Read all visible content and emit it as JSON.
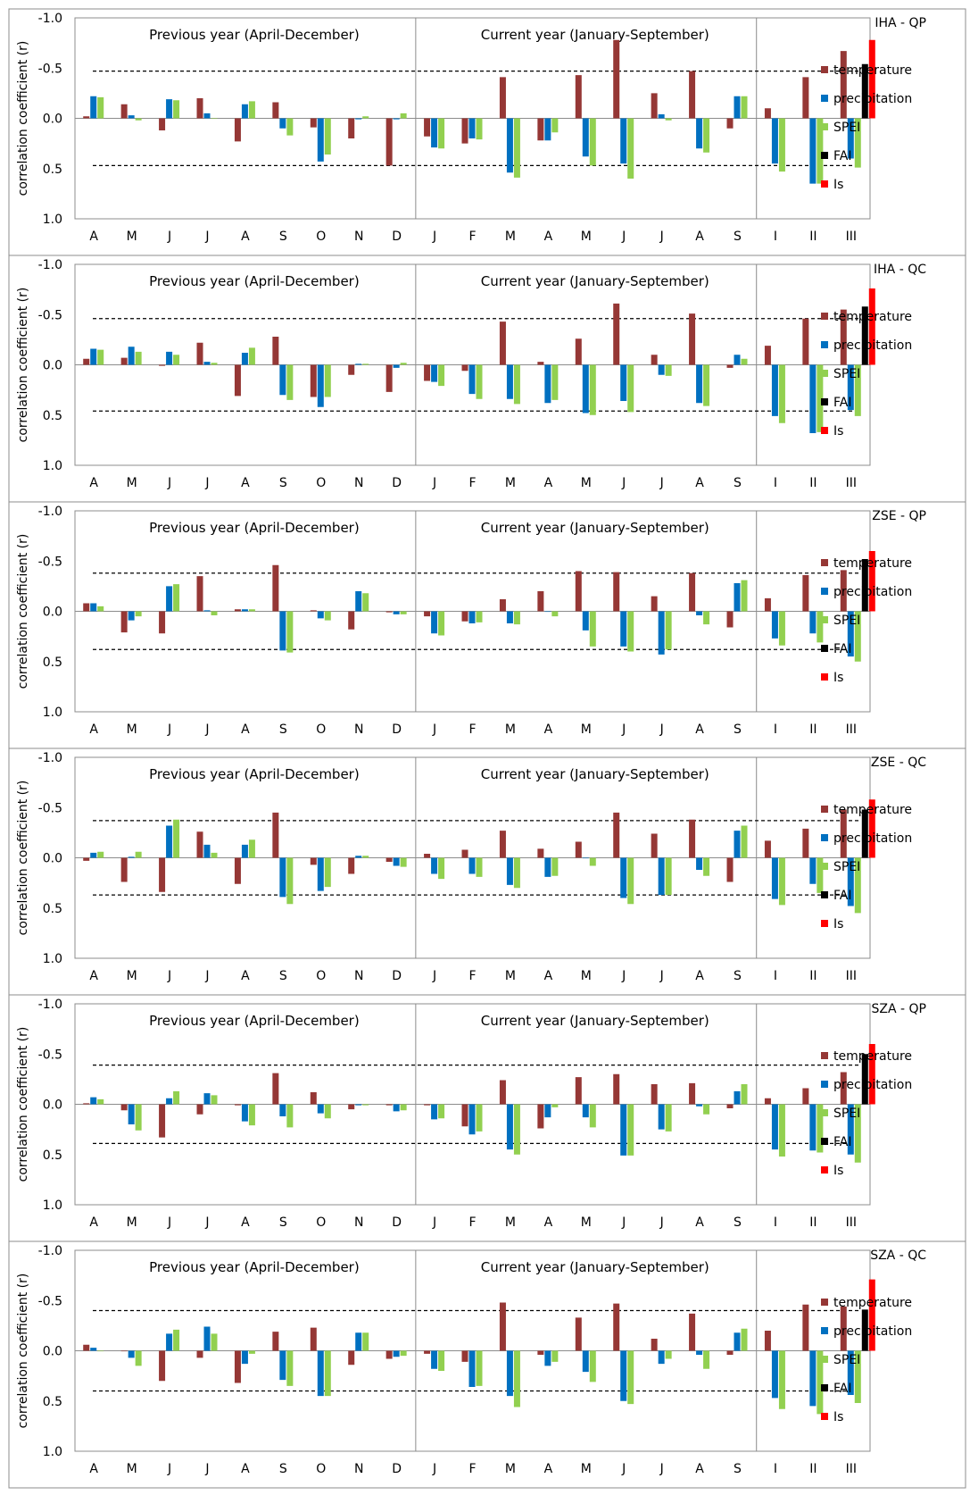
{
  "colors": {
    "temperature": "#953735",
    "precipitation": "#0070C0",
    "SPEI": "#92D050",
    "FAI": "#000000",
    "Is": "#FF0000"
  },
  "legend": [
    "temperature",
    "precipitation",
    "SPEI",
    "FAI",
    "Is"
  ],
  "section_labels": {
    "previous": "Previous year (April-December)",
    "current": "Current year (January-September)"
  },
  "ylabel": "correlation coefficient (r)",
  "chart_data": [
    {
      "type": "bar",
      "title": "IHA - QP",
      "ylim": [
        -1.0,
        1.0
      ],
      "yticks": [
        "1.0",
        "0.5",
        "0.0",
        "-0.5",
        "-1.0"
      ],
      "categories": [
        "A",
        "M",
        "J",
        "J",
        "A",
        "S",
        "O",
        "N",
        "D",
        "J",
        "F",
        "M",
        "A",
        "M",
        "J",
        "J",
        "A",
        "S",
        "I",
        "II",
        "III"
      ],
      "threshold": 0.47,
      "series": [
        {
          "name": "temperature",
          "values": [
            -0.02,
            -0.14,
            0.12,
            -0.2,
            0.23,
            -0.16,
            0.09,
            0.2,
            0.47,
            0.18,
            0.25,
            -0.41,
            0.22,
            -0.43,
            -0.78,
            -0.25,
            -0.47,
            0.1,
            -0.1,
            -0.41,
            -0.67
          ]
        },
        {
          "name": "precipitation",
          "values": [
            -0.22,
            -0.03,
            -0.19,
            -0.05,
            -0.14,
            0.1,
            0.43,
            0.01,
            0.01,
            0.29,
            0.2,
            0.54,
            0.22,
            0.38,
            0.45,
            -0.04,
            0.3,
            -0.22,
            0.45,
            0.65,
            0.4
          ]
        },
        {
          "name": "SPEI",
          "values": [
            -0.21,
            0.02,
            -0.18,
            0.0,
            -0.17,
            0.17,
            0.36,
            -0.02,
            -0.05,
            0.3,
            0.21,
            0.59,
            0.14,
            0.47,
            0.6,
            0.02,
            0.34,
            -0.22,
            0.53,
            0.65,
            0.49
          ]
        }
      ],
      "extra_bars": {
        "FAI": -0.54,
        "Is": -0.78
      }
    },
    {
      "type": "bar",
      "title": "IHA - QC",
      "ylim": [
        -1.0,
        1.0
      ],
      "yticks": [
        "1.0",
        "0.5",
        "0.0",
        "-0.5",
        "-1.0"
      ],
      "categories": [
        "A",
        "M",
        "J",
        "J",
        "A",
        "S",
        "O",
        "N",
        "D",
        "J",
        "F",
        "M",
        "A",
        "M",
        "J",
        "J",
        "A",
        "S",
        "I",
        "II",
        "III"
      ],
      "threshold": 0.46,
      "series": [
        {
          "name": "temperature",
          "values": [
            -0.06,
            -0.07,
            0.01,
            -0.22,
            0.31,
            -0.28,
            0.32,
            0.1,
            0.27,
            0.16,
            0.06,
            -0.43,
            -0.03,
            -0.26,
            -0.61,
            -0.1,
            -0.51,
            0.03,
            -0.19,
            -0.46,
            -0.55
          ]
        },
        {
          "name": "precipitation",
          "values": [
            -0.16,
            -0.18,
            -0.13,
            -0.03,
            -0.12,
            0.3,
            0.42,
            -0.01,
            0.03,
            0.17,
            0.29,
            0.34,
            0.38,
            0.48,
            0.36,
            0.1,
            0.38,
            -0.1,
            0.51,
            0.68,
            0.45
          ]
        },
        {
          "name": "SPEI",
          "values": [
            -0.15,
            -0.13,
            -0.1,
            -0.02,
            -0.17,
            0.35,
            0.32,
            -0.01,
            -0.02,
            0.21,
            0.34,
            0.39,
            0.35,
            0.5,
            0.47,
            0.11,
            0.41,
            -0.06,
            0.58,
            0.67,
            0.51
          ]
        }
      ],
      "extra_bars": {
        "FAI": -0.58,
        "Is": -0.76
      }
    },
    {
      "type": "bar",
      "title": "ZSE - QP",
      "ylim": [
        -1.0,
        1.0
      ],
      "yticks": [
        "1.0",
        "0.5",
        "0.0",
        "-0.5",
        "-1.0"
      ],
      "categories": [
        "A",
        "M",
        "J",
        "J",
        "A",
        "S",
        "O",
        "N",
        "D",
        "J",
        "F",
        "M",
        "A",
        "M",
        "J",
        "J",
        "A",
        "S",
        "I",
        "II",
        "III"
      ],
      "threshold": 0.38,
      "series": [
        {
          "name": "temperature",
          "values": [
            -0.08,
            0.21,
            0.22,
            -0.35,
            -0.02,
            -0.46,
            -0.01,
            0.18,
            0.01,
            0.05,
            0.1,
            -0.12,
            -0.2,
            -0.4,
            -0.39,
            -0.15,
            -0.38,
            0.16,
            -0.13,
            -0.36,
            -0.41
          ]
        },
        {
          "name": "precipitation",
          "values": [
            -0.08,
            0.09,
            -0.25,
            -0.01,
            -0.02,
            0.39,
            0.07,
            -0.2,
            0.03,
            0.22,
            0.12,
            0.12,
            0.0,
            0.19,
            0.35,
            0.43,
            0.04,
            -0.28,
            0.27,
            0.22,
            0.45
          ]
        },
        {
          "name": "SPEI",
          "values": [
            -0.05,
            0.05,
            -0.27,
            0.04,
            -0.02,
            0.41,
            0.09,
            -0.18,
            0.03,
            0.24,
            0.11,
            0.13,
            0.05,
            0.35,
            0.4,
            0.38,
            0.13,
            -0.31,
            0.34,
            0.31,
            0.5
          ]
        }
      ],
      "extra_bars": {
        "FAI": -0.52,
        "Is": -0.6
      }
    },
    {
      "type": "bar",
      "title": "ZSE - QC",
      "ylim": [
        -1.0,
        1.0
      ],
      "yticks": [
        "1.0",
        "0.5",
        "0.0",
        "-0.5",
        "-1.0"
      ],
      "categories": [
        "A",
        "M",
        "J",
        "J",
        "A",
        "S",
        "O",
        "N",
        "D",
        "J",
        "F",
        "M",
        "A",
        "M",
        "J",
        "J",
        "A",
        "S",
        "I",
        "II",
        "III"
      ],
      "threshold": 0.37,
      "series": [
        {
          "name": "temperature",
          "values": [
            0.03,
            0.24,
            0.34,
            -0.26,
            0.26,
            -0.45,
            0.07,
            0.16,
            0.04,
            -0.04,
            -0.08,
            -0.27,
            -0.09,
            -0.16,
            -0.45,
            -0.24,
            -0.38,
            0.24,
            -0.17,
            -0.29,
            -0.48
          ]
        },
        {
          "name": "precipitation",
          "values": [
            -0.05,
            -0.01,
            -0.32,
            -0.13,
            -0.13,
            0.39,
            0.33,
            -0.02,
            0.08,
            0.16,
            0.16,
            0.27,
            0.19,
            0.0,
            0.4,
            0.37,
            0.12,
            -0.27,
            0.41,
            0.26,
            0.48
          ]
        },
        {
          "name": "SPEI",
          "values": [
            -0.06,
            -0.06,
            -0.38,
            -0.05,
            -0.18,
            0.46,
            0.29,
            -0.02,
            0.09,
            0.21,
            0.19,
            0.3,
            0.18,
            0.08,
            0.46,
            0.37,
            0.18,
            -0.32,
            0.47,
            0.35,
            0.55
          ]
        }
      ],
      "extra_bars": {
        "FAI": -0.48,
        "Is": -0.58
      }
    },
    {
      "type": "bar",
      "title": "SZA - QP",
      "ylim": [
        -1.0,
        1.0
      ],
      "yticks": [
        "1.0",
        "0.5",
        "0.0",
        "-0.5",
        "-1.0"
      ],
      "categories": [
        "A",
        "M",
        "J",
        "J",
        "A",
        "S",
        "O",
        "N",
        "D",
        "J",
        "F",
        "M",
        "A",
        "M",
        "J",
        "J",
        "A",
        "S",
        "I",
        "II",
        "III"
      ],
      "threshold": 0.39,
      "series": [
        {
          "name": "temperature",
          "values": [
            -0.01,
            0.06,
            0.33,
            0.1,
            0.01,
            -0.31,
            -0.12,
            0.05,
            0.01,
            0.01,
            0.22,
            -0.24,
            0.24,
            -0.27,
            -0.3,
            -0.2,
            -0.21,
            0.04,
            -0.06,
            -0.16,
            -0.32
          ]
        },
        {
          "name": "precipitation",
          "values": [
            -0.07,
            0.2,
            -0.06,
            -0.11,
            0.17,
            0.12,
            0.09,
            0.01,
            0.07,
            0.15,
            0.3,
            0.45,
            0.13,
            0.13,
            0.51,
            0.25,
            0.02,
            -0.13,
            0.45,
            0.46,
            0.5
          ]
        },
        {
          "name": "SPEI",
          "values": [
            -0.05,
            0.26,
            -0.13,
            -0.09,
            0.21,
            0.23,
            0.14,
            0.01,
            0.06,
            0.14,
            0.27,
            0.5,
            0.03,
            0.23,
            0.51,
            0.27,
            0.1,
            -0.2,
            0.52,
            0.48,
            0.58
          ]
        }
      ],
      "extra_bars": {
        "FAI": -0.5,
        "Is": -0.6
      }
    },
    {
      "type": "bar",
      "title": "SZA - QC",
      "ylim": [
        -1.0,
        1.0
      ],
      "yticks": [
        "1.0",
        "0.5",
        "0.0",
        "-0.5",
        "-1.0"
      ],
      "categories": [
        "A",
        "M",
        "J",
        "J",
        "A",
        "S",
        "O",
        "N",
        "D",
        "J",
        "F",
        "M",
        "A",
        "M",
        "J",
        "J",
        "A",
        "S",
        "I",
        "II",
        "III"
      ],
      "threshold": 0.4,
      "series": [
        {
          "name": "temperature",
          "values": [
            -0.06,
            0.0,
            0.3,
            0.07,
            0.32,
            -0.19,
            -0.23,
            0.14,
            0.08,
            0.03,
            0.11,
            -0.48,
            0.04,
            -0.33,
            -0.47,
            -0.12,
            -0.37,
            0.04,
            -0.2,
            -0.46,
            -0.44
          ]
        },
        {
          "name": "precipitation",
          "values": [
            -0.03,
            0.07,
            -0.17,
            -0.24,
            0.13,
            0.29,
            0.45,
            -0.18,
            0.06,
            0.18,
            0.36,
            0.45,
            0.15,
            0.21,
            0.5,
            0.13,
            0.04,
            -0.18,
            0.47,
            0.55,
            0.44
          ]
        },
        {
          "name": "SPEI",
          "values": [
            0.0,
            0.15,
            -0.21,
            -0.17,
            0.03,
            0.35,
            0.45,
            -0.18,
            0.05,
            0.2,
            0.35,
            0.56,
            0.11,
            0.31,
            0.53,
            0.08,
            0.18,
            -0.22,
            0.58,
            0.63,
            0.52
          ]
        }
      ],
      "extra_bars": {
        "FAI": -0.41,
        "Is": -0.71
      }
    }
  ]
}
